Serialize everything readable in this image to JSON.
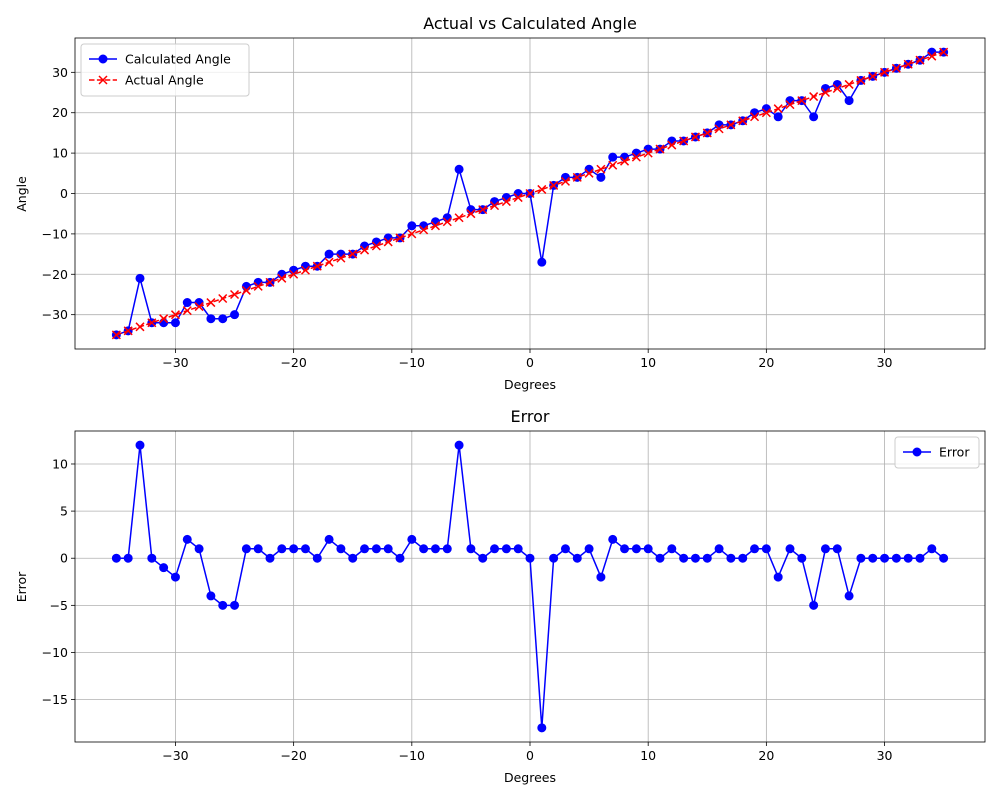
{
  "chart_data": [
    {
      "type": "line",
      "title": "Actual vs Calculated Angle",
      "xlabel": "Degrees",
      "ylabel": "Angle",
      "xlim": [
        -38.5,
        38.5
      ],
      "ylim": [
        -38.5,
        38.5
      ],
      "xticks": [
        -30,
        -20,
        -10,
        0,
        10,
        20,
        30
      ],
      "yticks": [
        -30,
        -20,
        -10,
        0,
        10,
        20,
        30
      ],
      "grid": true,
      "legend_position": "top-left",
      "x": [
        -35,
        -34,
        -33,
        -32,
        -31,
        -30,
        -29,
        -28,
        -27,
        -26,
        -25,
        -24,
        -23,
        -22,
        -21,
        -20,
        -19,
        -18,
        -17,
        -16,
        -15,
        -14,
        -13,
        -12,
        -11,
        -10,
        -9,
        -8,
        -7,
        -6,
        -5,
        -4,
        -3,
        -2,
        -1,
        0,
        1,
        2,
        3,
        4,
        5,
        6,
        7,
        8,
        9,
        10,
        11,
        12,
        13,
        14,
        15,
        16,
        17,
        18,
        19,
        20,
        21,
        22,
        23,
        24,
        25,
        26,
        27,
        28,
        29,
        30,
        31,
        32,
        33,
        34,
        35
      ],
      "series": [
        {
          "name": "Calculated Angle",
          "color": "#0000ff",
          "marker": "circle",
          "linestyle": "solid",
          "values": [
            -35,
            -34,
            -21,
            -32,
            -32,
            -32,
            -27,
            -27,
            -31,
            -31,
            -30,
            -23,
            -22,
            -22,
            -20,
            -19,
            -18,
            -18,
            -15,
            -15,
            -15,
            -13,
            -12,
            -11,
            -11,
            -8,
            -8,
            -7,
            -6,
            6,
            -4,
            -4,
            -2,
            -1,
            0,
            0,
            -17,
            2,
            4,
            4,
            6,
            4,
            9,
            9,
            10,
            11,
            11,
            13,
            13,
            14,
            15,
            17,
            17,
            18,
            20,
            21,
            19,
            23,
            23,
            19,
            26,
            27,
            23,
            28,
            29,
            30,
            31,
            32,
            33,
            35,
            35
          ]
        },
        {
          "name": "Actual Angle",
          "color": "#ff0000",
          "marker": "x",
          "linestyle": "dashed",
          "values": [
            -35,
            -34,
            -33,
            -32,
            -31,
            -30,
            -29,
            -28,
            -27,
            -26,
            -25,
            -24,
            -23,
            -22,
            -21,
            -20,
            -19,
            -18,
            -17,
            -16,
            -15,
            -14,
            -13,
            -12,
            -11,
            -10,
            -9,
            -8,
            -7,
            -6,
            -5,
            -4,
            -3,
            -2,
            -1,
            0,
            1,
            2,
            3,
            4,
            5,
            6,
            7,
            8,
            9,
            10,
            11,
            12,
            13,
            14,
            15,
            16,
            17,
            18,
            19,
            20,
            21,
            22,
            23,
            24,
            25,
            26,
            27,
            28,
            29,
            30,
            31,
            32,
            33,
            34,
            35
          ]
        }
      ]
    },
    {
      "type": "line",
      "title": "Error",
      "xlabel": "Degrees",
      "ylabel": "Error",
      "xlim": [
        -38.5,
        38.5
      ],
      "ylim": [
        -19.5,
        13.5
      ],
      "xticks": [
        -30,
        -20,
        -10,
        0,
        10,
        20,
        30
      ],
      "yticks": [
        -15,
        -10,
        -5,
        0,
        5,
        10
      ],
      "grid": true,
      "legend_position": "top-right",
      "x": [
        -35,
        -34,
        -33,
        -32,
        -31,
        -30,
        -29,
        -28,
        -27,
        -26,
        -25,
        -24,
        -23,
        -22,
        -21,
        -20,
        -19,
        -18,
        -17,
        -16,
        -15,
        -14,
        -13,
        -12,
        -11,
        -10,
        -9,
        -8,
        -7,
        -6,
        -5,
        -4,
        -3,
        -2,
        -1,
        0,
        1,
        2,
        3,
        4,
        5,
        6,
        7,
        8,
        9,
        10,
        11,
        12,
        13,
        14,
        15,
        16,
        17,
        18,
        19,
        20,
        21,
        22,
        23,
        24,
        25,
        26,
        27,
        28,
        29,
        30,
        31,
        32,
        33,
        34,
        35
      ],
      "series": [
        {
          "name": "Error",
          "color": "#0000ff",
          "marker": "circle",
          "linestyle": "solid",
          "values": [
            0,
            0,
            12,
            0,
            -1,
            -2,
            2,
            1,
            -4,
            -5,
            -5,
            1,
            1,
            0,
            1,
            1,
            1,
            0,
            2,
            1,
            0,
            1,
            1,
            1,
            0,
            2,
            1,
            1,
            1,
            12,
            1,
            0,
            1,
            1,
            1,
            0,
            -18,
            0,
            1,
            0,
            1,
            -2,
            2,
            1,
            1,
            1,
            0,
            1,
            0,
            0,
            0,
            1,
            0,
            0,
            1,
            1,
            -2,
            1,
            0,
            -5,
            1,
            1,
            -4,
            0,
            0,
            0,
            0,
            0,
            0,
            1,
            0
          ]
        }
      ]
    }
  ]
}
